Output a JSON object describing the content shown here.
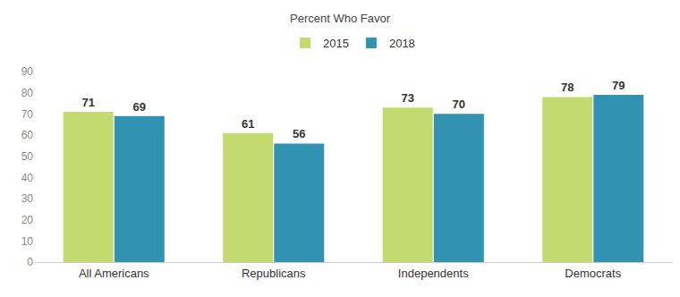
{
  "chart_data": {
    "type": "bar",
    "title": "Percent Who Favor",
    "categories": [
      "All Americans",
      "Republicans",
      "Independents",
      "Democrats"
    ],
    "series": [
      {
        "name": "2015",
        "color": "#c3da6e",
        "values": [
          71,
          61,
          73,
          78
        ]
      },
      {
        "name": "2018",
        "color": "#3193b1",
        "values": [
          69,
          56,
          70,
          79
        ]
      }
    ],
    "ylim": [
      0,
      90
    ],
    "yticks": [
      0,
      10,
      20,
      30,
      40,
      50,
      60,
      70,
      80,
      90
    ],
    "grid": false,
    "legend": "top",
    "data_labels": true
  }
}
